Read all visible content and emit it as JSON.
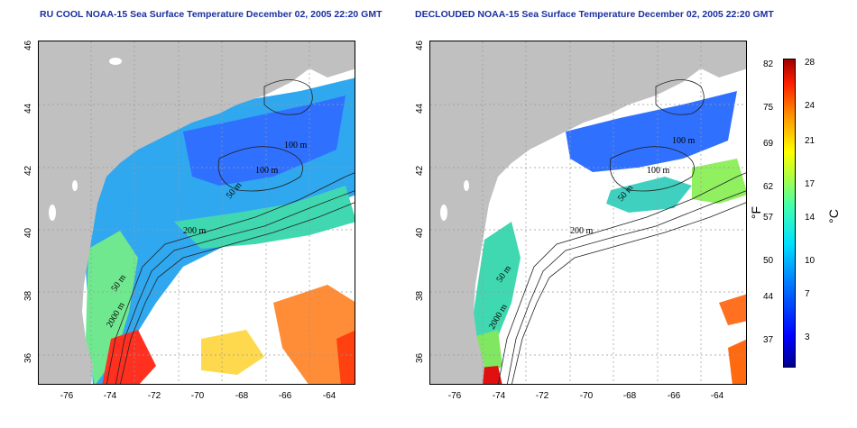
{
  "left_panel": {
    "title": "RU COOL NOAA-15 Sea Surface Temperature December 02, 2005 22:20 GMT",
    "contour_labels": [
      "100 m",
      "100 m",
      "50 m",
      "200 m",
      "50 m",
      "2000 m"
    ]
  },
  "right_panel": {
    "title": "DECLOUDED NOAA-15 Sea Surface Temperature December 02, 2005 22:20 GMT",
    "contour_labels": [
      "100 m",
      "100 m",
      "50 m",
      "200 m",
      "50 m",
      "2000 m"
    ]
  },
  "x_ticks": [
    "-76",
    "-74",
    "-72",
    "-70",
    "-68",
    "-66",
    "-64"
  ],
  "y_ticks": [
    "46",
    "44",
    "42",
    "40",
    "38",
    "36"
  ],
  "colorbar": {
    "fahrenheit_label": "°F",
    "celsius_label": "°C",
    "fahrenheit_ticks": [
      "82",
      "75",
      "69",
      "62",
      "57",
      "50",
      "44",
      "37"
    ],
    "celsius_ticks": [
      "28",
      "24",
      "21",
      "17",
      "14",
      "10",
      "7",
      "3"
    ]
  },
  "colors": {
    "title": "#1a2fa0",
    "land": "#c0c0c0"
  }
}
